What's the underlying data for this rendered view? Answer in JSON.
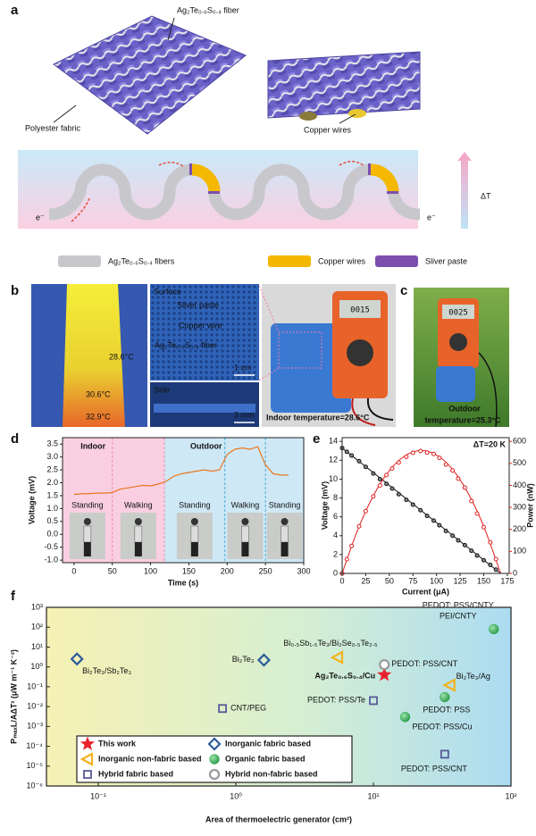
{
  "figure": {
    "panel_letters": [
      "a",
      "b",
      "c",
      "d",
      "e",
      "f"
    ],
    "a": {
      "fiber_label": "Ag₂Te₀.₆S₀.₄ fiber",
      "fabric_label": "Polyester fabric",
      "copper_label": "Copper wires",
      "electron_in": "e⁻",
      "electron_out": "e⁻",
      "delta_t": "ΔT",
      "legend": [
        "Ag₂Te₀.₆S₀.₄ fibers",
        "Copper wires",
        "Sliver paste"
      ]
    },
    "b": {
      "temps": [
        "28.6°C",
        "30.6°C",
        "32.9°C"
      ],
      "surface": "Surface",
      "sliver": "Sliver paste",
      "copper": "Copper wire",
      "fiber": "Ag₂Te₀.₆S₀.₄ fiber",
      "scale_1": "1 cm",
      "side": "Side",
      "scale_2": "3 mm",
      "display": "0015",
      "caption": "Indoor temperature=28.6°C"
    },
    "c": {
      "display": "0025",
      "caption": [
        "Outdoor",
        "temperature=25.3°C"
      ]
    }
  },
  "chart_data": [
    {
      "type": "line",
      "xlabel": "Time (s)",
      "ylabel": "Voltage (mV)",
      "x": [
        0,
        10,
        20,
        30,
        40,
        50,
        60,
        70,
        80,
        90,
        100,
        110,
        120,
        130,
        140,
        150,
        160,
        170,
        180,
        190,
        200,
        210,
        220,
        230,
        240,
        250,
        260,
        270,
        280
      ],
      "values": [
        1.55,
        1.57,
        1.58,
        1.6,
        1.6,
        1.62,
        1.75,
        1.8,
        1.85,
        1.9,
        1.88,
        1.95,
        2.05,
        2.25,
        2.35,
        2.4,
        2.45,
        2.5,
        2.45,
        2.5,
        3.1,
        3.3,
        3.35,
        3.3,
        3.4,
        2.7,
        2.35,
        2.3,
        2.3
      ],
      "color": "#e8771e",
      "xlim": [
        -15,
        300
      ],
      "xticks": [
        0,
        50,
        100,
        150,
        200,
        250,
        300
      ],
      "ylim": [
        -1.1,
        3.75
      ],
      "yticks": [
        {
          "value": -1,
          "label": "-1.0"
        },
        -0.5,
        {
          "value": 0,
          "label": "0.0"
        },
        0.5,
        {
          "value": 1,
          "label": "1.0"
        },
        1.5,
        {
          "value": 2,
          "label": "2.0"
        },
        2.5,
        {
          "value": 3,
          "label": "3.0"
        },
        3.5
      ],
      "regions": [
        {
          "label": "Indoor",
          "start": -15,
          "end": 118,
          "color": "#f9cfe1",
          "text_color": "#e0619c"
        },
        {
          "label": "Outdoor",
          "start": 118,
          "end": 300,
          "color": "#cfe8f6",
          "text_color": "#2f9fd0"
        }
      ],
      "activities": [
        {
          "label": "Standing",
          "start": -15,
          "end": 50
        },
        {
          "label": "Walking",
          "start": 50,
          "end": 118
        },
        {
          "label": "Standing",
          "start": 118,
          "end": 197
        },
        {
          "label": "Walking",
          "start": 197,
          "end": 250
        },
        {
          "label": "Standing",
          "start": 250,
          "end": 300
        }
      ]
    },
    {
      "type": "scatter",
      "xlabel": "Current (μA)",
      "ylabel": "Voltage (mV)",
      "y2label": "Power (nW)",
      "annotation": "ΔT=20 K",
      "x": [
        0,
        5,
        10,
        18,
        25,
        33,
        40,
        47,
        53,
        60,
        68,
        75,
        83,
        90,
        97,
        103,
        110,
        117,
        123,
        130,
        137,
        143,
        150,
        157,
        163
      ],
      "series": [
        {
          "color": "#111111",
          "values": [
            13.3,
            12.9,
            12.5,
            11.9,
            11.3,
            10.6,
            10.0,
            9.5,
            9.0,
            8.4,
            7.8,
            7.3,
            6.7,
            6.1,
            5.6,
            5.1,
            4.5,
            4.0,
            3.5,
            3.0,
            2.4,
            1.9,
            1.4,
            0.9,
            0.4
          ]
        },
        {
          "color": "#e02020",
          "axis": "y2",
          "values": [
            0,
            64.5,
            125,
            214,
            283,
            350,
            400,
            447,
            477,
            504,
            530,
            548,
            556,
            549,
            543,
            525,
            495,
            468,
            431,
            390,
            329,
            272,
            210,
            141,
            65
          ]
        }
      ],
      "fits": [
        {
          "color": "#111111",
          "x": [
            0,
            168
          ],
          "values": [
            13.3,
            0
          ]
        },
        {
          "color": "#e02020",
          "axis": "y2",
          "x": [
            0,
            15,
            30,
            45,
            60,
            75,
            90,
            105,
            120,
            135,
            150,
            168
          ],
          "values": [
            0,
            181.7,
            327.7,
            438.2,
            513,
            552.2,
            555.8,
            523.7,
            456,
            352.7,
            213.8,
            0
          ]
        }
      ],
      "xlim": [
        0,
        177
      ],
      "xticks": [
        0,
        25,
        50,
        75,
        100,
        125,
        150,
        175
      ],
      "ylim": [
        0,
        14.4
      ],
      "yticks": [
        0,
        2,
        4,
        6,
        8,
        10,
        12,
        14
      ],
      "y2lim": [
        0,
        617
      ],
      "y2ticks": [
        0,
        100,
        200,
        300,
        400,
        500,
        600
      ]
    },
    {
      "type": "scatter",
      "xlabel": "Area of thermoelectric generator (cm²)",
      "ylabel": "PₘₐₓL/AΔT² (μW m⁻¹ K⁻²)",
      "xscale": "log",
      "yscale": "log",
      "legend": "lower left",
      "xlim": [
        0.042,
        100
      ],
      "xticks": [
        {
          "value": 0.1,
          "label": "10⁻¹"
        },
        {
          "value": 1,
          "label": "10⁰"
        },
        {
          "value": 10,
          "label": "10¹"
        },
        {
          "value": 100,
          "label": "10²"
        }
      ],
      "ylim": [
        1e-06,
        1000
      ],
      "yticks": [
        {
          "value": 1000,
          "label": "10³"
        },
        {
          "value": 100,
          "label": "10²"
        },
        {
          "value": 10,
          "label": "10¹"
        },
        {
          "value": 1,
          "label": "10⁰"
        },
        {
          "value": 0.1,
          "label": "10⁻¹"
        },
        {
          "value": 0.01,
          "label": "10⁻²"
        },
        {
          "value": 0.001,
          "label": "10⁻³"
        },
        {
          "value": 0.0001,
          "label": "10⁻⁴"
        },
        {
          "value": 1e-05,
          "label": "10⁻⁵"
        },
        {
          "value": 1e-06,
          "label": "10⁻⁶"
        }
      ],
      "series": [
        {
          "name": "This work",
          "marker": "star",
          "color": "#e8202a",
          "label_color": "#e8202a",
          "x": [
            12
          ],
          "values": [
            0.4
          ],
          "point_labels": [
            "Ag₂Te₀.₆S₀.₄/Cu"
          ]
        },
        {
          "name": "Inorganic fabric based",
          "marker": "diamond",
          "color": "#2d5c9c",
          "label_color": "#2d5c9c",
          "x": [
            0.07,
            1.6
          ],
          "values": [
            2.5,
            2.2
          ],
          "point_labels": [
            "Bi₂Te₃/Sb₂Te₃",
            "Bi₂Te₃"
          ]
        },
        {
          "name": "Inorganic non-fabric based",
          "marker": "triangle",
          "color": "#f2b21c",
          "label_color": "#e0a010",
          "x": [
            5.5,
            36
          ],
          "values": [
            3,
            0.12
          ],
          "point_labels": [
            "Bi₀.₅Sb₁.₅Te₃/Bi₂Se₀.₅Te₂.₅",
            "Bi₂Te₃/Ag"
          ]
        },
        {
          "name": "Organic fabric based",
          "marker": "circle",
          "color": "#35b15a",
          "label_color": "#2f9a4e",
          "x": [
            75,
            33,
            17
          ],
          "values": [
            80,
            0.03,
            0.003
          ],
          "point_labels": [
            "PEDOT: PSS/CNTY\nPEI/CNTY",
            "PEDOT: PSS",
            "PEDOT: PSS/Cu"
          ]
        },
        {
          "name": "Hybrid fabric based",
          "marker": "square",
          "color": "#575a98",
          "label_color": "#48508a",
          "x": [
            0.8,
            10,
            33
          ],
          "values": [
            0.008,
            0.02,
            4e-05
          ],
          "point_labels": [
            "CNT/PEG",
            "PEDOT: PSS/Te",
            "PEDOT: PSS/CNT"
          ]
        },
        {
          "name": "Hybrid non-fabric based",
          "marker": "ring",
          "color": "#9a9a9a",
          "label_color": "#8a8a8a",
          "x": [
            12
          ],
          "values": [
            1.3
          ],
          "point_labels": [
            "PEDOT: PSS/CNT"
          ]
        }
      ]
    }
  ]
}
